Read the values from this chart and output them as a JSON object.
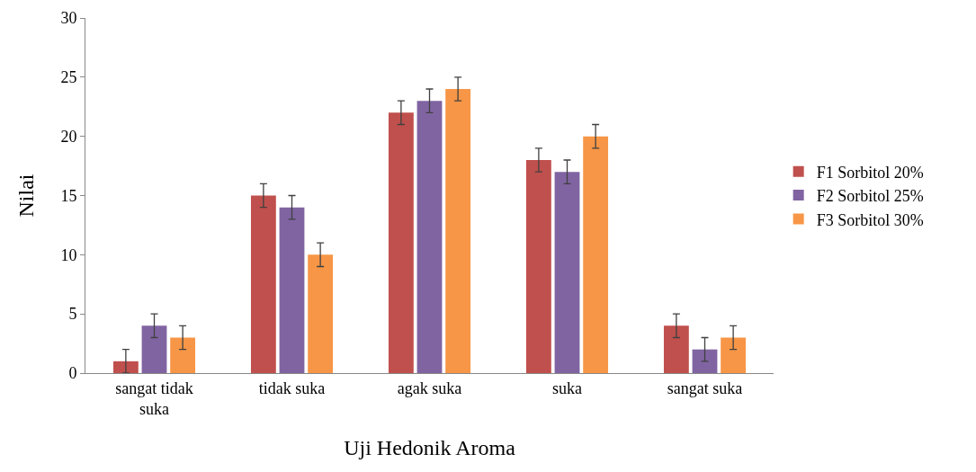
{
  "chart_data": {
    "type": "bar",
    "xlabel": "Uji Hedonik Aroma",
    "ylabel": "Nilai",
    "categories": [
      "sangat tidak suka",
      "tidak suka",
      "agak suka",
      "suka",
      "sangat suka"
    ],
    "series": [
      {
        "name": "F1 Sorbitol 20%",
        "color": "#c0504d",
        "values": [
          1,
          15,
          22,
          18,
          4
        ],
        "errors": [
          1,
          1,
          1,
          1,
          1
        ]
      },
      {
        "name": "F2 Sorbitol 25%",
        "color": "#8064a2",
        "values": [
          4,
          14,
          23,
          17,
          2
        ],
        "errors": [
          1,
          1,
          1,
          1,
          1
        ]
      },
      {
        "name": "F3 Sorbitol 30%",
        "color": "#f79646",
        "values": [
          3,
          10,
          24,
          20,
          3
        ],
        "errors": [
          1,
          1,
          1,
          1,
          1
        ]
      }
    ],
    "ylim": [
      0,
      30
    ],
    "yticks": [
      0,
      5,
      10,
      15,
      20,
      25,
      30
    ],
    "grid": false,
    "legend": "right"
  }
}
